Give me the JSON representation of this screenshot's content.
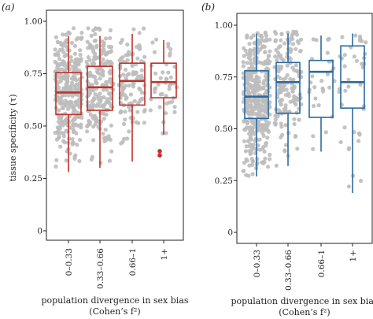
{
  "chart_data": [
    {
      "type": "box",
      "panel_label": "(a)",
      "ylabel": "tissue specificity (τ)",
      "xlabel_line1": "population divergence in sex bias",
      "xlabel_line2": "(Cohen’s f²)",
      "categories": [
        "0–0.33",
        "0.33–0.66",
        "0.66–1",
        "1+"
      ],
      "yticks": [
        "0",
        "0.25",
        "0.50",
        "0.75",
        "1.00"
      ],
      "ylim": [
        0,
        1.05
      ],
      "color": "#c0322a",
      "jitter_color": "#bdbdbd",
      "boxes": [
        {
          "category": "0–0.33",
          "whisker_low": 0.28,
          "q1": 0.555,
          "median": 0.66,
          "q3": 0.755,
          "whisker_high": 0.93,
          "outliers": []
        },
        {
          "category": "0.33–0.66",
          "whisker_low": 0.3,
          "q1": 0.575,
          "median": 0.685,
          "q3": 0.785,
          "whisker_high": 0.93,
          "outliers": []
        },
        {
          "category": "0.66–1",
          "whisker_low": 0.33,
          "q1": 0.6,
          "median": 0.715,
          "q3": 0.8,
          "whisker_high": 0.94,
          "outliers": []
        },
        {
          "category": "1+",
          "whisker_low": 0.46,
          "q1": 0.635,
          "median": 0.71,
          "q3": 0.8,
          "whisker_high": 0.91,
          "outliers": [
            0.38,
            0.36
          ]
        }
      ],
      "point_counts": [
        320,
        220,
        110,
        45
      ]
    },
    {
      "type": "box",
      "panel_label": "(b)",
      "ylabel": "",
      "xlabel_line1": "population divergence in sex bias",
      "xlabel_line2": "(Cohen’s f²)",
      "categories": [
        "0–0.33",
        "0.33–0.66",
        "0.66–1",
        "1+"
      ],
      "yticks": [
        "0",
        "0.25",
        "0.50",
        "0.75",
        "1.00"
      ],
      "ylim": [
        0,
        1.05
      ],
      "color": "#2a6aa0",
      "jitter_color": "#bdbdbd",
      "boxes": [
        {
          "category": "0–0.33",
          "whisker_low": 0.27,
          "q1": 0.55,
          "median": 0.655,
          "q3": 0.78,
          "whisker_high": 0.96,
          "outliers": []
        },
        {
          "category": "0.33–0.66",
          "whisker_low": 0.32,
          "q1": 0.575,
          "median": 0.725,
          "q3": 0.82,
          "whisker_high": 0.96,
          "outliers": []
        },
        {
          "category": "0.66–1",
          "whisker_low": 0.39,
          "q1": 0.555,
          "median": 0.775,
          "q3": 0.83,
          "whisker_high": 0.95,
          "outliers": []
        },
        {
          "category": "1+",
          "whisker_low": 0.19,
          "q1": 0.6,
          "median": 0.725,
          "q3": 0.9,
          "whisker_high": 0.96,
          "outliers": []
        }
      ],
      "point_counts": [
        420,
        160,
        30,
        40
      ]
    }
  ]
}
